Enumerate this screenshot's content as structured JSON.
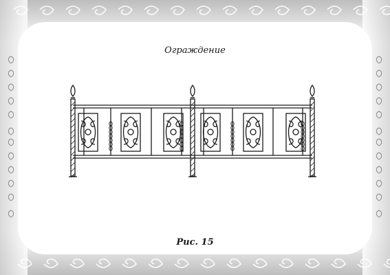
{
  "document": {
    "title": "Ограждение",
    "caption": "Рис. 15"
  },
  "colors": {
    "ink": "#1a1a1a",
    "frame": "#cfcfcf",
    "frame_light": "#e8e8e8",
    "paper": "#ffffff"
  },
  "illustration": {
    "icon": "wrought-iron-fence-drawing",
    "posts": 3,
    "sections": 2,
    "panels_per_section": 3
  }
}
